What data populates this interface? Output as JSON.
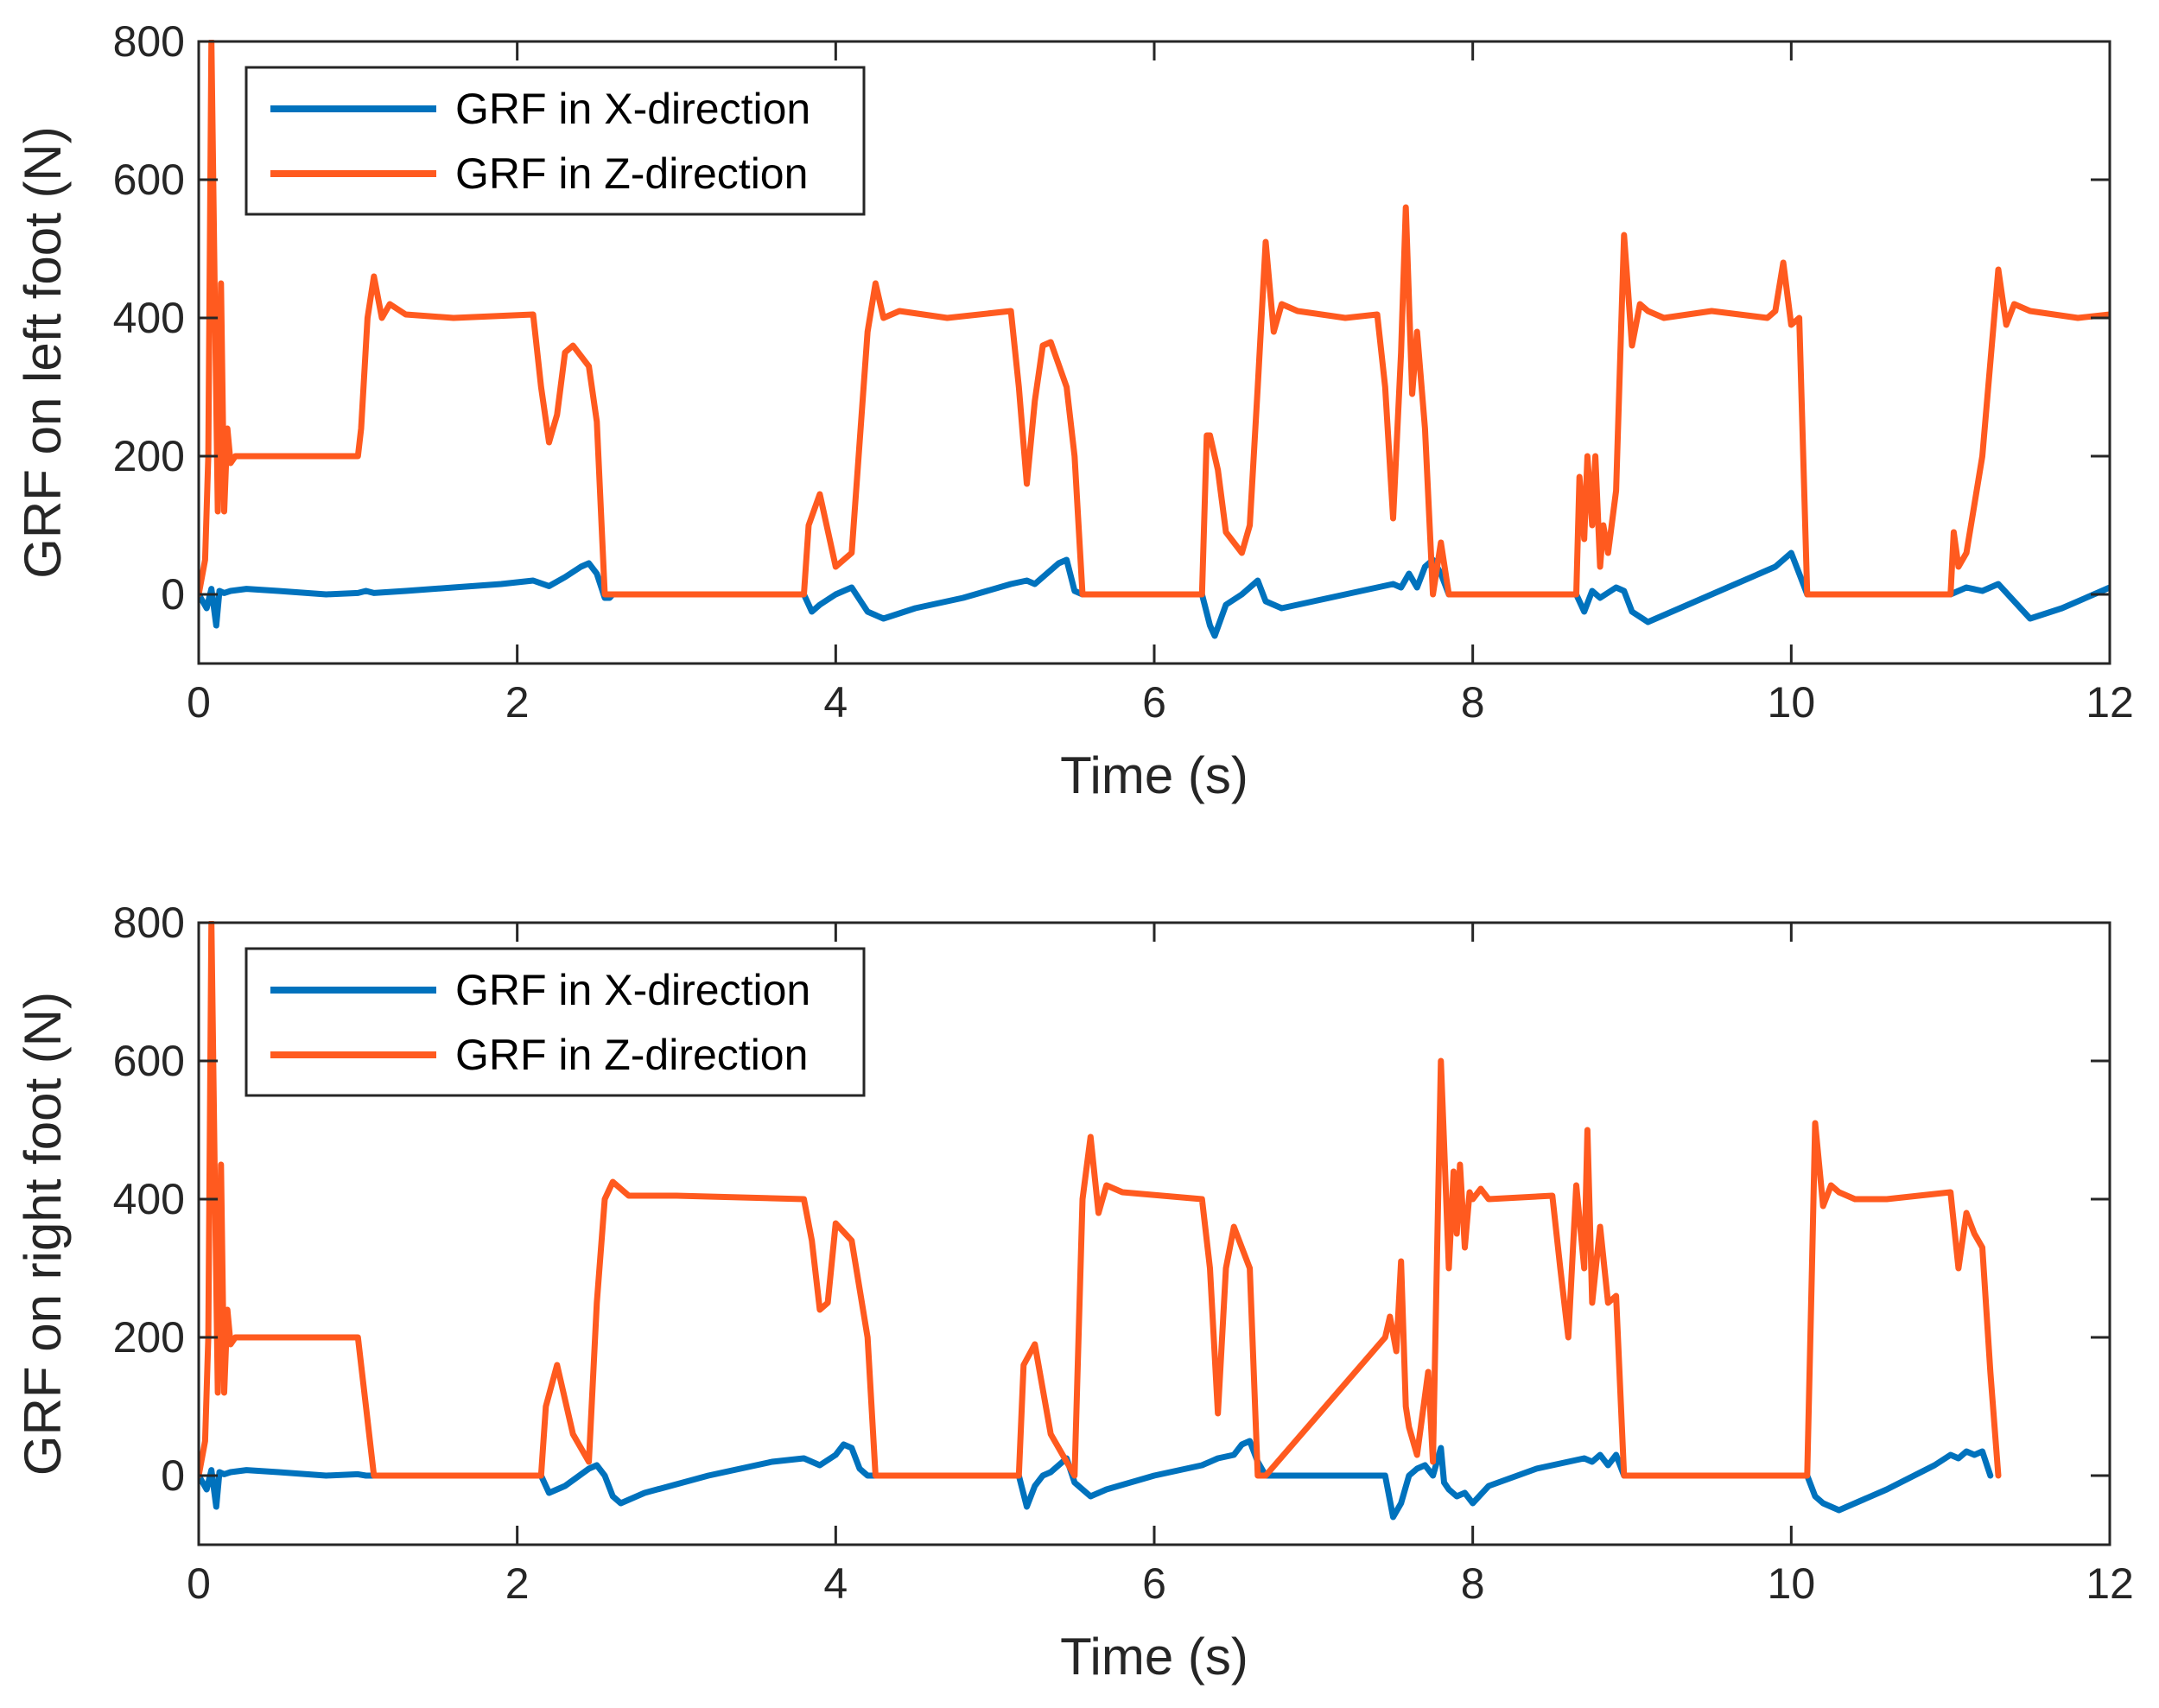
{
  "chart_data": [
    {
      "type": "line",
      "xlabel": "Time (s)",
      "ylabel": "GRF on left foot (N)",
      "xlim": [
        0,
        12
      ],
      "ylim": [
        -100,
        800
      ],
      "xticks": [
        "0",
        "2",
        "4",
        "6",
        "8",
        "10",
        "12"
      ],
      "yticks": [
        "0",
        "200",
        "400",
        "600",
        "800"
      ],
      "legend_position": "top-left",
      "series": [
        {
          "name": "GRF in X-direction",
          "color": "#0072BD",
          "x": [
            0,
            0.05,
            0.08,
            0.11,
            0.13,
            0.16,
            0.2,
            0.3,
            0.5,
            0.8,
            1.0,
            1.05,
            1.1,
            1.3,
            1.6,
            1.9,
            2.1,
            2.2,
            2.3,
            2.4,
            2.45,
            2.5,
            2.55,
            2.58,
            2.6,
            3.8,
            3.85,
            3.9,
            4.0,
            4.1,
            4.2,
            4.25,
            4.3,
            4.5,
            4.8,
            5.1,
            5.2,
            5.25,
            5.3,
            5.4,
            5.45,
            5.5,
            5.55,
            5.6,
            6.3,
            6.35,
            6.38,
            6.45,
            6.55,
            6.6,
            6.65,
            6.7,
            6.8,
            7.0,
            7.3,
            7.5,
            7.55,
            7.6,
            7.65,
            7.7,
            7.75,
            7.8,
            7.85,
            8.65,
            8.7,
            8.75,
            8.8,
            8.9,
            8.95,
            9.0,
            9.1,
            9.3,
            9.6,
            9.8,
            9.9,
            9.95,
            10.0,
            10.05,
            10.1,
            10.15,
            11.0,
            11.05,
            11.1,
            11.2,
            11.3,
            11.4,
            11.5,
            11.7,
            12.0
          ],
          "y": [
            0,
            -20,
            8,
            -45,
            5,
            2,
            5,
            8,
            5,
            0,
            2,
            5,
            2,
            5,
            10,
            15,
            20,
            12,
            25,
            40,
            45,
            30,
            -5,
            -5,
            0,
            0,
            -25,
            -15,
            0,
            10,
            -25,
            -30,
            -35,
            -20,
            -5,
            15,
            20,
            15,
            25,
            45,
            50,
            5,
            0,
            0,
            0,
            -45,
            -60,
            -15,
            0,
            10,
            20,
            -10,
            -20,
            -10,
            5,
            15,
            10,
            30,
            10,
            40,
            50,
            30,
            0,
            0,
            -25,
            5,
            -5,
            10,
            5,
            -25,
            -40,
            -20,
            10,
            30,
            40,
            50,
            60,
            30,
            0,
            0,
            0,
            5,
            10,
            5,
            15,
            -10,
            -35,
            -20,
            10
          ]
        },
        {
          "name": "GRF in Z-direction",
          "color": "#FF5A1F",
          "x": [
            0,
            0.04,
            0.06,
            0.08,
            0.1,
            0.12,
            0.14,
            0.16,
            0.18,
            0.2,
            0.23,
            0.3,
            1.0,
            1.02,
            1.06,
            1.1,
            1.15,
            1.2,
            1.3,
            1.6,
            2.1,
            2.15,
            2.2,
            2.25,
            2.3,
            2.35,
            2.45,
            2.5,
            2.55,
            2.58,
            3.8,
            3.83,
            3.9,
            4.0,
            4.1,
            4.2,
            4.25,
            4.3,
            4.4,
            4.7,
            5.1,
            5.15,
            5.2,
            5.25,
            5.3,
            5.35,
            5.45,
            5.5,
            5.55,
            6.3,
            6.33,
            6.35,
            6.4,
            6.45,
            6.55,
            6.6,
            6.65,
            6.7,
            6.75,
            6.8,
            6.9,
            7.2,
            7.4,
            7.45,
            7.5,
            7.55,
            7.58,
            7.62,
            7.65,
            7.7,
            7.75,
            7.8,
            7.85,
            8.65,
            8.67,
            8.7,
            8.72,
            8.75,
            8.77,
            8.8,
            8.82,
            8.85,
            8.9,
            8.95,
            9.0,
            9.05,
            9.1,
            9.2,
            9.5,
            9.85,
            9.9,
            9.95,
            10.0,
            10.05,
            10.1,
            10.15,
            11.0,
            11.02,
            11.05,
            11.1,
            11.2,
            11.3,
            11.35,
            11.4,
            11.5,
            11.8,
            12.0
          ],
          "y": [
            0,
            50,
            200,
            800,
            450,
            120,
            450,
            120,
            240,
            190,
            200,
            200,
            200,
            240,
            400,
            460,
            400,
            420,
            405,
            400,
            405,
            300,
            220,
            260,
            350,
            360,
            330,
            250,
            0,
            0,
            0,
            100,
            145,
            40,
            60,
            380,
            450,
            400,
            410,
            400,
            410,
            300,
            160,
            280,
            360,
            365,
            300,
            200,
            0,
            0,
            230,
            230,
            180,
            90,
            60,
            100,
            300,
            510,
            380,
            420,
            410,
            400,
            405,
            300,
            110,
            350,
            560,
            290,
            380,
            240,
            0,
            75,
            0,
            0,
            170,
            80,
            200,
            100,
            200,
            40,
            100,
            60,
            150,
            520,
            360,
            420,
            410,
            400,
            410,
            400,
            410,
            480,
            390,
            400,
            0,
            0,
            0,
            90,
            40,
            60,
            200,
            470,
            390,
            420,
            410,
            400,
            405
          ]
        }
      ]
    },
    {
      "type": "line",
      "xlabel": "Time (s)",
      "ylabel": "GRF on right foot (N)",
      "xlim": [
        0,
        12
      ],
      "ylim": [
        -100,
        800
      ],
      "xticks": [
        "0",
        "2",
        "4",
        "6",
        "8",
        "10",
        "12"
      ],
      "yticks": [
        "0",
        "200",
        "400",
        "600",
        "800"
      ],
      "legend_position": "top-left",
      "series": [
        {
          "name": "GRF in X-direction",
          "color": "#0072BD",
          "x": [
            0,
            0.05,
            0.08,
            0.11,
            0.13,
            0.16,
            0.2,
            0.3,
            0.5,
            0.8,
            1.0,
            1.05,
            2.15,
            2.2,
            2.3,
            2.45,
            2.5,
            2.55,
            2.6,
            2.65,
            2.8,
            3.2,
            3.6,
            3.8,
            3.9,
            4.0,
            4.05,
            4.1,
            4.15,
            4.2,
            5.15,
            5.2,
            5.25,
            5.3,
            5.35,
            5.45,
            5.5,
            5.55,
            5.6,
            5.7,
            6.0,
            6.3,
            6.4,
            6.5,
            6.55,
            6.6,
            6.65,
            6.7,
            7.45,
            7.5,
            7.55,
            7.6,
            7.65,
            7.7,
            7.75,
            7.8,
            7.82,
            7.85,
            7.9,
            7.95,
            8.0,
            8.1,
            8.4,
            8.7,
            8.75,
            8.8,
            8.85,
            8.9,
            8.95,
            10.1,
            10.15,
            10.2,
            10.3,
            10.6,
            10.9,
            11.0,
            11.05,
            11.1,
            11.15,
            11.2,
            11.25
          ],
          "y": [
            0,
            -20,
            8,
            -45,
            5,
            2,
            5,
            8,
            5,
            0,
            2,
            0,
            0,
            -25,
            -15,
            10,
            15,
            0,
            -30,
            -40,
            -25,
            0,
            20,
            25,
            15,
            30,
            45,
            40,
            10,
            0,
            0,
            -45,
            -15,
            0,
            5,
            25,
            -10,
            -20,
            -30,
            -20,
            0,
            15,
            25,
            30,
            45,
            50,
            20,
            0,
            0,
            -60,
            -40,
            0,
            10,
            15,
            0,
            40,
            -10,
            -20,
            -30,
            -25,
            -40,
            -15,
            10,
            25,
            20,
            30,
            15,
            30,
            0,
            0,
            -30,
            -40,
            -50,
            -20,
            15,
            30,
            25,
            35,
            30,
            35,
            0
          ]
        },
        {
          "name": "GRF in Z-direction",
          "color": "#FF5A1F",
          "x": [
            0,
            0.04,
            0.06,
            0.08,
            0.1,
            0.12,
            0.14,
            0.16,
            0.18,
            0.2,
            0.23,
            0.3,
            1.0,
            1.05,
            1.1,
            2.15,
            2.18,
            2.25,
            2.35,
            2.45,
            2.5,
            2.55,
            2.6,
            2.7,
            3.0,
            3.8,
            3.85,
            3.9,
            3.95,
            4.0,
            4.1,
            4.2,
            4.25,
            5.15,
            5.18,
            5.25,
            5.35,
            5.5,
            5.55,
            5.6,
            5.65,
            5.7,
            5.8,
            6.3,
            6.35,
            6.4,
            6.45,
            6.5,
            6.6,
            6.65,
            6.7,
            7.45,
            7.48,
            7.52,
            7.55,
            7.58,
            7.6,
            7.65,
            7.72,
            7.75,
            7.8,
            7.85,
            7.88,
            7.9,
            7.92,
            7.95,
            7.98,
            8.0,
            8.05,
            8.1,
            8.5,
            8.55,
            8.6,
            8.65,
            8.7,
            8.72,
            8.75,
            8.8,
            8.85,
            8.9,
            8.95,
            10.1,
            10.13,
            10.15,
            10.2,
            10.25,
            10.3,
            10.4,
            10.6,
            11.0,
            11.05,
            11.1,
            11.15,
            11.2,
            11.25,
            11.3
          ],
          "y": [
            0,
            50,
            200,
            800,
            450,
            120,
            450,
            120,
            240,
            190,
            200,
            200,
            200,
            100,
            0,
            0,
            100,
            160,
            60,
            20,
            250,
            400,
            425,
            405,
            405,
            400,
            340,
            240,
            250,
            365,
            340,
            200,
            0,
            0,
            160,
            190,
            60,
            0,
            400,
            490,
            380,
            420,
            410,
            400,
            300,
            90,
            300,
            360,
            300,
            0,
            0,
            200,
            230,
            180,
            310,
            100,
            70,
            30,
            150,
            20,
            600,
            300,
            440,
            350,
            450,
            330,
            410,
            400,
            415,
            400,
            405,
            300,
            200,
            420,
            300,
            500,
            250,
            360,
            250,
            260,
            0,
            0,
            300,
            510,
            390,
            420,
            410,
            400,
            400,
            410,
            300,
            380,
            350,
            330,
            150,
            0
          ]
        }
      ]
    }
  ]
}
